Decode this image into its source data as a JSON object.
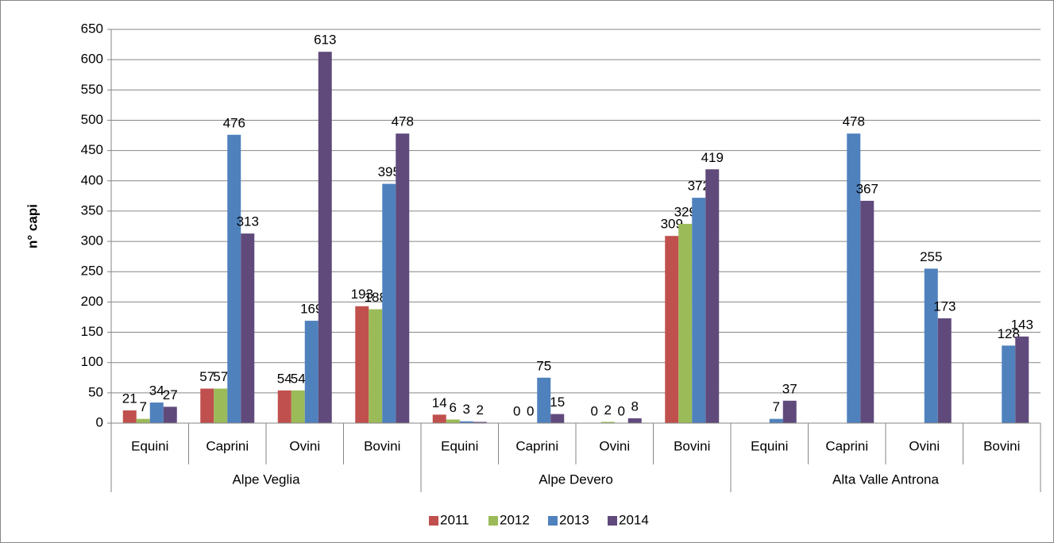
{
  "chart_data": {
    "type": "bar",
    "y_label": "n° capi",
    "groups": [
      {
        "label": "Alpe Veglia",
        "categories": [
          "Equini",
          "Caprini",
          "Ovini",
          "Bovini"
        ]
      },
      {
        "label": "Alpe Devero",
        "categories": [
          "Equini",
          "Caprini",
          "Ovini",
          "Bovini"
        ]
      },
      {
        "label": "Alta Valle Antrona",
        "categories": [
          "Equini",
          "Caprini",
          "Ovini",
          "Bovini"
        ]
      }
    ],
    "series": [
      {
        "name": "2011",
        "color": "#c0504d",
        "values": [
          21,
          57,
          54,
          193,
          14,
          0,
          0,
          309,
          null,
          null,
          null,
          null
        ]
      },
      {
        "name": "2012",
        "color": "#9bbb59",
        "values": [
          7,
          57,
          54,
          188,
          6,
          0,
          2,
          329,
          null,
          null,
          null,
          null
        ]
      },
      {
        "name": "2013",
        "color": "#4f81bd",
        "values": [
          34,
          476,
          169,
          395,
          3,
          75,
          0,
          372,
          7,
          478,
          255,
          128
        ]
      },
      {
        "name": "2014",
        "color": "#604a7b",
        "values": [
          27,
          313,
          613,
          478,
          2,
          15,
          8,
          419,
          37,
          367,
          173,
          143
        ]
      }
    ],
    "ylim": [
      0,
      650
    ],
    "yticks": [
      0,
      50,
      100,
      150,
      200,
      250,
      300,
      350,
      400,
      450,
      500,
      550,
      600,
      650
    ],
    "grid": true,
    "legend": "bottom"
  }
}
